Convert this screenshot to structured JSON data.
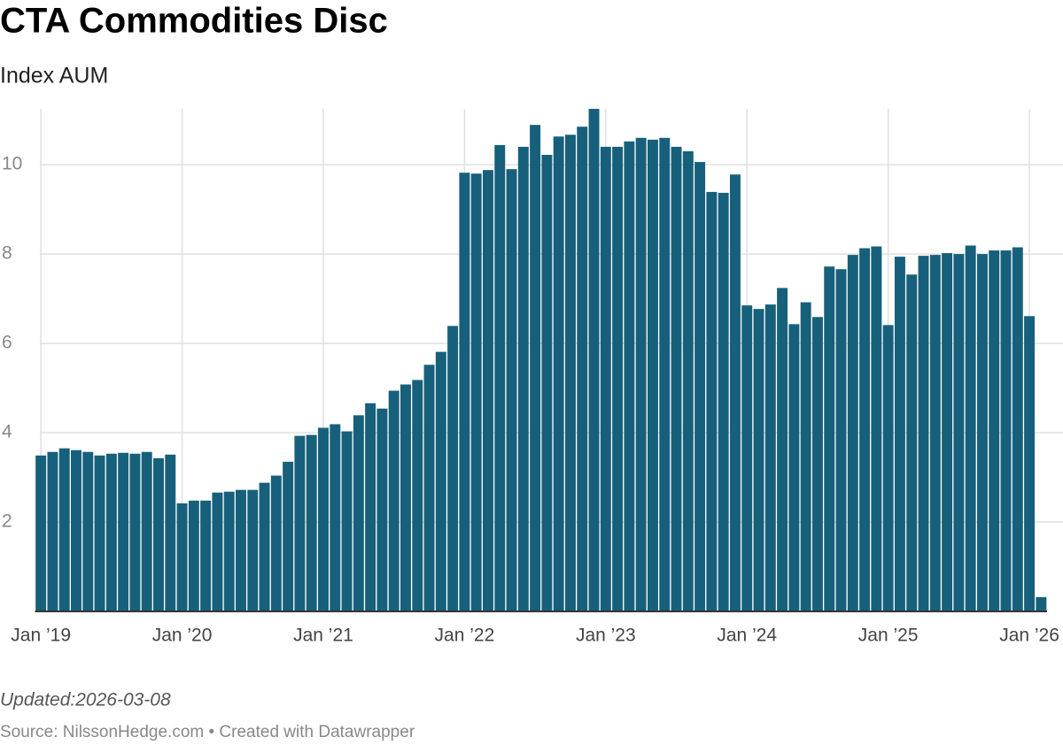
{
  "chart_data": {
    "type": "bar",
    "title": "CTA Commodities Disc",
    "subtitle": "Index AUM",
    "updated": "Updated:2026-03-08",
    "source": "Source: NilssonHedge.com • Created with Datawrapper",
    "categories": [
      "Jan ’19",
      null,
      null,
      null,
      null,
      null,
      null,
      null,
      null,
      null,
      null,
      null,
      "Jan ’20",
      null,
      null,
      null,
      null,
      null,
      null,
      null,
      null,
      null,
      null,
      null,
      "Jan ’21",
      null,
      null,
      null,
      null,
      null,
      null,
      null,
      null,
      null,
      null,
      null,
      "Jan ’22",
      null,
      null,
      null,
      null,
      null,
      null,
      null,
      null,
      null,
      null,
      null,
      "Jan ’23",
      null,
      null,
      null,
      null,
      null,
      null,
      null,
      null,
      null,
      null,
      null,
      "Jan ’24",
      null,
      null,
      null,
      null,
      null,
      null,
      null,
      null,
      null,
      null,
      null,
      "Jan ’25",
      null,
      null,
      null,
      null,
      null,
      null,
      null,
      null,
      null,
      null,
      null,
      "Jan ’26",
      null
    ],
    "values": [
      3.49,
      3.57,
      3.65,
      3.61,
      3.57,
      3.49,
      3.53,
      3.55,
      3.53,
      3.57,
      3.43,
      3.51,
      2.42,
      2.48,
      2.48,
      2.66,
      2.68,
      2.72,
      2.72,
      2.88,
      3.04,
      3.35,
      3.93,
      3.95,
      4.11,
      4.19,
      4.03,
      4.39,
      4.66,
      4.54,
      4.94,
      5.08,
      5.18,
      5.52,
      5.81,
      6.39,
      9.82,
      9.8,
      9.88,
      10.44,
      9.9,
      10.4,
      10.89,
      10.22,
      10.63,
      10.67,
      10.85,
      11.25,
      10.4,
      10.4,
      10.52,
      10.6,
      10.56,
      10.6,
      10.4,
      10.3,
      10.06,
      9.39,
      9.37,
      9.78,
      6.85,
      6.77,
      6.87,
      7.24,
      6.43,
      6.92,
      6.59,
      7.72,
      7.66,
      7.98,
      8.13,
      8.17,
      6.41,
      7.94,
      7.54,
      7.96,
      7.98,
      8.02,
      8.0,
      8.19,
      8.0,
      8.08,
      8.08,
      8.15,
      6.61,
      0.32
    ],
    "color": "#17607b",
    "ylim": [
      0,
      11.25
    ],
    "yticks": [
      2,
      4,
      6,
      8,
      10
    ],
    "grid": true
  }
}
